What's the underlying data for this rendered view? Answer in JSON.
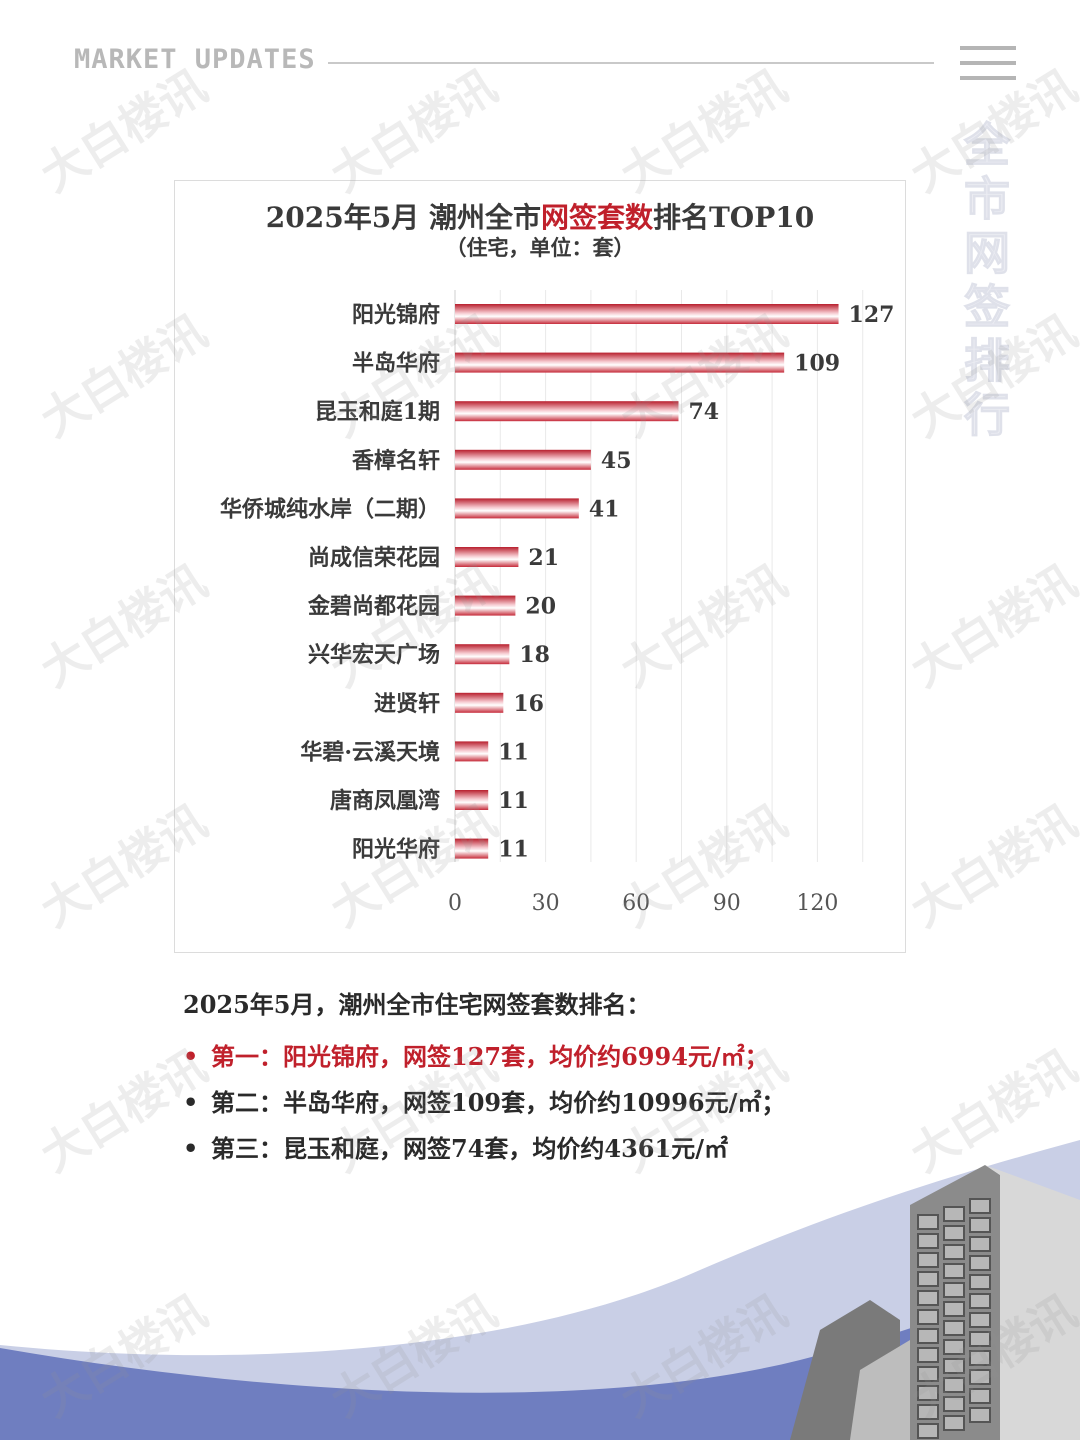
{
  "header": {
    "label": "MARKET UPDATES"
  },
  "side_title": "全市网签排行",
  "chart_data": {
    "type": "bar",
    "orientation": "horizontal",
    "title_parts": [
      "2025年5月 潮州全市",
      "网签套数",
      "排名TOP10"
    ],
    "subtitle": "（住宅，单位：套）",
    "categories": [
      "阳光锦府",
      "半岛华府",
      "昆玉和庭1期",
      "香樟名轩",
      "华侨城纯水岸（二期）",
      "尚成信荣花园",
      "金碧尚都花园",
      "兴华宏天广场",
      "进贤轩",
      "华碧·云溪天境",
      "唐商凤凰湾",
      "阳光华府"
    ],
    "values": [
      127,
      109,
      74,
      45,
      41,
      21,
      20,
      18,
      16,
      11,
      11,
      11
    ],
    "xlim": [
      0,
      140
    ],
    "x_ticks": [
      0,
      30,
      60,
      90,
      120
    ],
    "grid": true,
    "bar_color": "#d43a4a",
    "highlight_color": "#c0202b"
  },
  "summary": {
    "heading": "2025年5月，潮州全市住宅网签套数排名：",
    "items": [
      {
        "text": "第一：阳光锦府，网签127套，均价约6994元/㎡；",
        "highlight": true
      },
      {
        "text": "第二：半岛华府，网签109套，均价约10996元/㎡；",
        "highlight": false
      },
      {
        "text": "第三：昆玉和庭，网签74套，均价约4361元/㎡",
        "highlight": false
      }
    ],
    "bullet": "•"
  },
  "watermark_text": "大白楼讯",
  "colors": {
    "accent_blue": "#6f7ec0",
    "light_blue": "#c9cfe6"
  }
}
